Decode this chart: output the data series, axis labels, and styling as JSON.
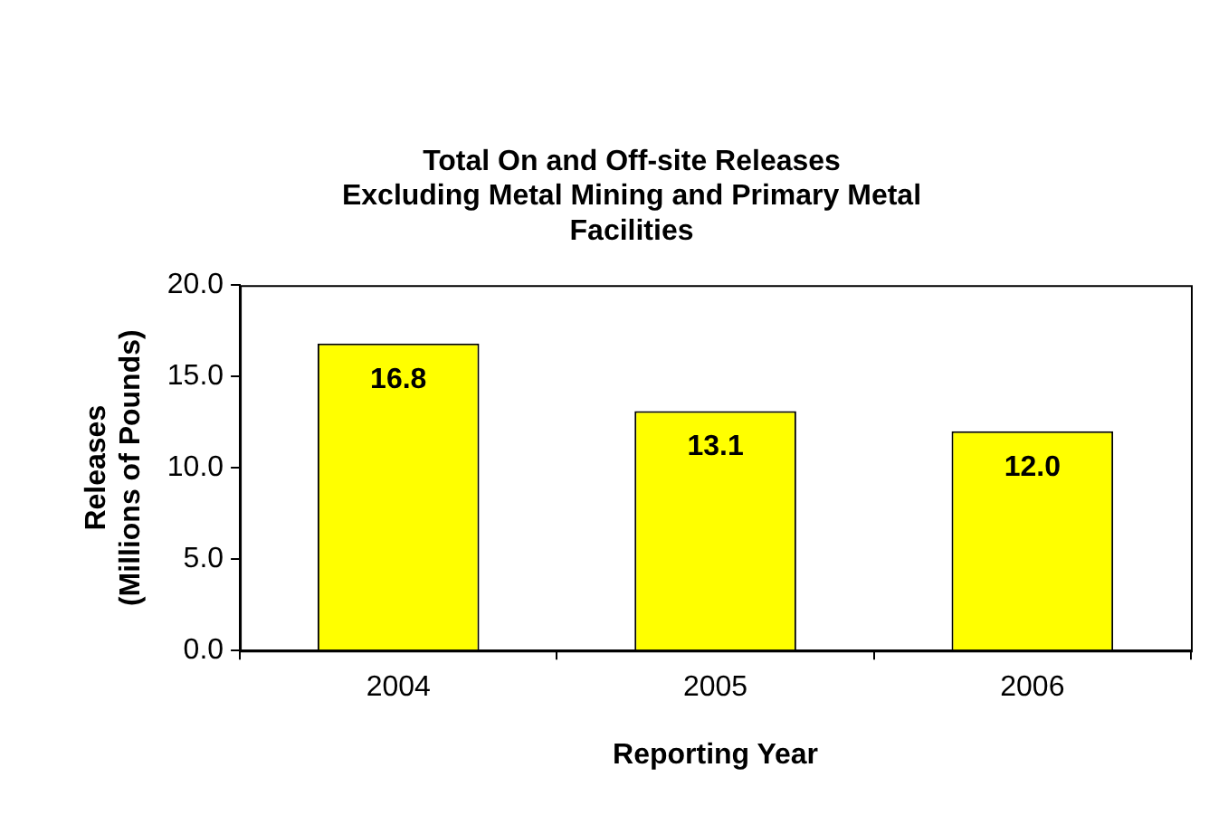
{
  "chart_data": {
    "type": "bar",
    "title": "Total On and Off-site Releases\nExcluding Metal Mining and Primary Metal\nFacilities",
    "xlabel": "Reporting Year",
    "ylabel": "Releases\n(Millions of Pounds)",
    "categories": [
      "2004",
      "2005",
      "2006"
    ],
    "values": [
      16.8,
      13.1,
      12.0
    ],
    "color": "#ffff00",
    "ylim": [
      0,
      20
    ],
    "yticks": [
      {
        "value": 0,
        "label": "0.0"
      },
      {
        "value": 5,
        "label": "5.0"
      },
      {
        "value": 10,
        "label": "10.0"
      },
      {
        "value": 15,
        "label": "15.0"
      },
      {
        "value": 20,
        "label": "20.0"
      }
    ],
    "value_labels": [
      "16.8",
      "13.1",
      "12.0"
    ],
    "grid": false,
    "legend": false
  }
}
